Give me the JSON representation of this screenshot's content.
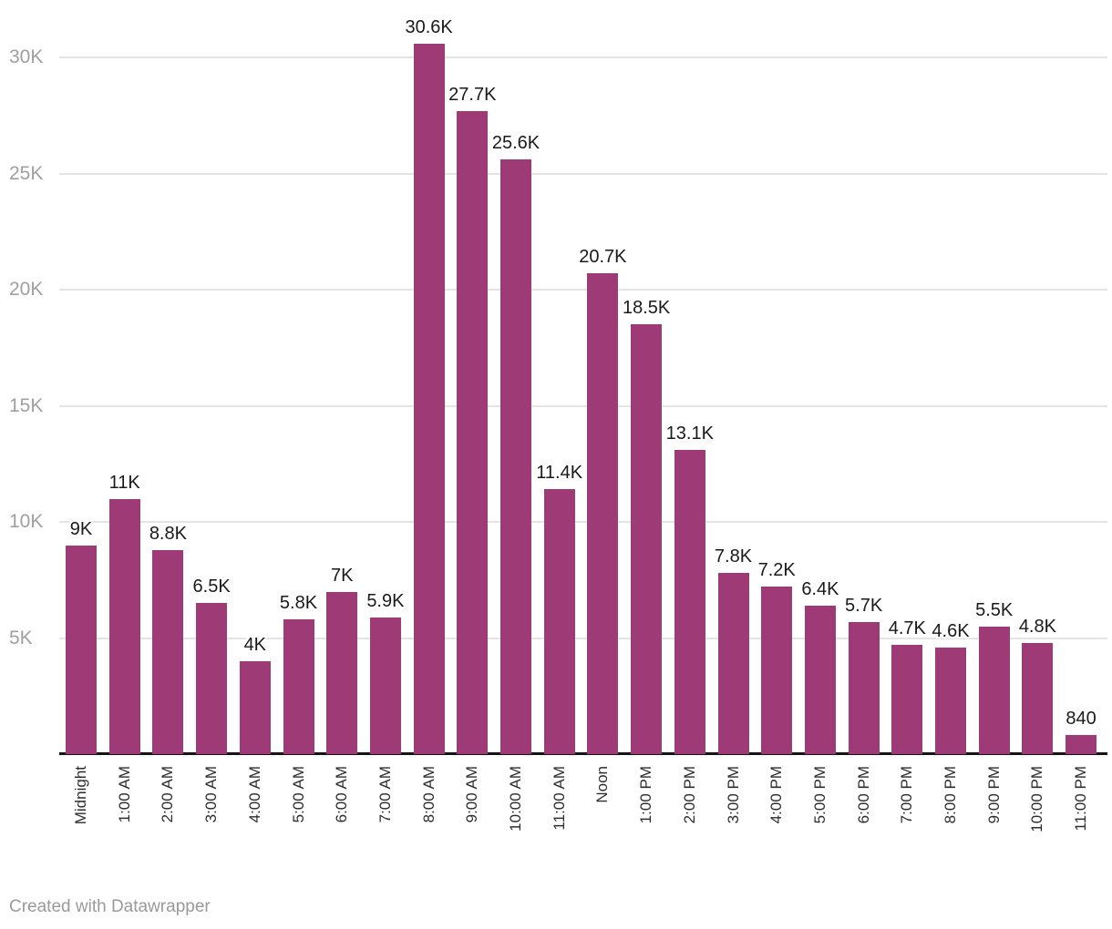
{
  "chart_data": {
    "type": "bar",
    "title": "",
    "xlabel": "",
    "ylabel": "",
    "ylim": [
      0,
      31000
    ],
    "grid": "horizontal",
    "legend": "none",
    "bar_color": "#9e3a76",
    "categories": [
      "Midnight",
      "1:00 AM",
      "2:00 AM",
      "3:00 AM",
      "4:00 AM",
      "5:00 AM",
      "6:00 AM",
      "7:00 AM",
      "8:00 AM",
      "9:00 AM",
      "10:00 AM",
      "11:00 AM",
      "Noon",
      "1:00 PM",
      "2:00 PM",
      "3:00 PM",
      "4:00 PM",
      "5:00 PM",
      "6:00 PM",
      "7:00 PM",
      "8:00 PM",
      "9:00 PM",
      "10:00 PM",
      "11:00 PM"
    ],
    "values": [
      9000,
      11000,
      8800,
      6500,
      4000,
      5800,
      7000,
      5900,
      30600,
      27700,
      25600,
      11400,
      20700,
      18500,
      13100,
      7800,
      7200,
      6400,
      5700,
      4700,
      4600,
      5500,
      4800,
      840
    ],
    "value_labels": [
      "9K",
      "11K",
      "8.8K",
      "6.5K",
      "4K",
      "5.8K",
      "7K",
      "5.9K",
      "30.6K",
      "27.7K",
      "25.6K",
      "11.4K",
      "20.7K",
      "18.5K",
      "13.1K",
      "7.8K",
      "7.2K",
      "6.4K",
      "5.7K",
      "4.7K",
      "4.6K",
      "5.5K",
      "4.8K",
      "840"
    ],
    "y_ticks": [
      {
        "label": "5K",
        "value": 5000
      },
      {
        "label": "10K",
        "value": 10000
      },
      {
        "label": "15K",
        "value": 15000
      },
      {
        "label": "20K",
        "value": 20000
      },
      {
        "label": "25K",
        "value": 25000
      },
      {
        "label": "30K",
        "value": 30000
      }
    ]
  },
  "footer": {
    "credit": "Created with Datawrapper"
  }
}
